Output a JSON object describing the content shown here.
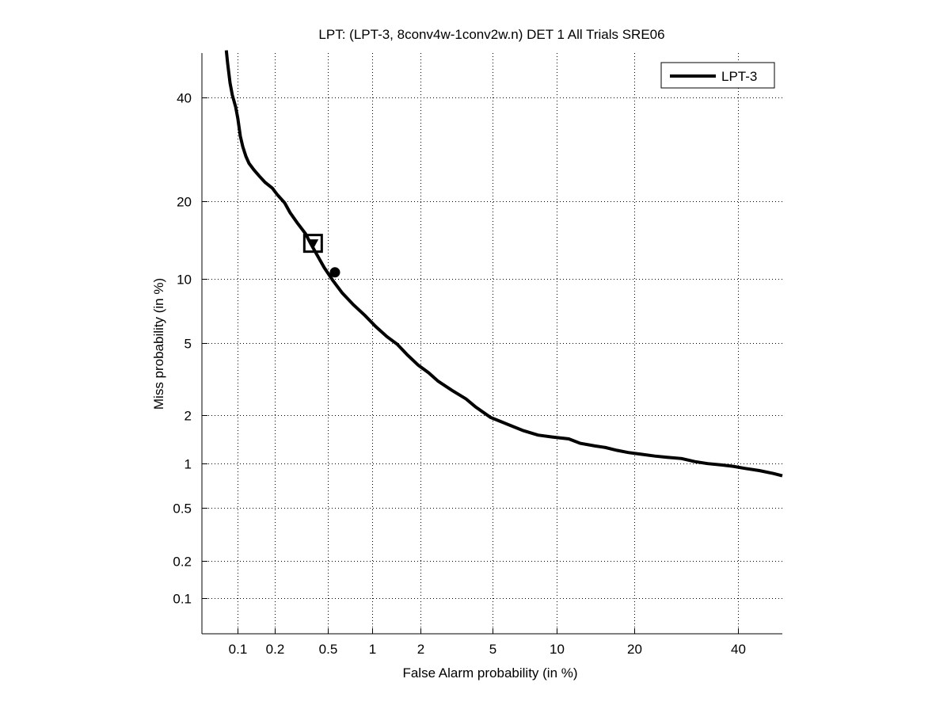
{
  "chart_data": {
    "type": "line",
    "scale": "normal-deviate (DET)",
    "title": "LPT: (LPT-3, 8conv4w-1conv2w.n) DET 1 All Trials SRE06",
    "xlabel": "False Alarm probability (in %)",
    "ylabel": "Miss probability (in %)",
    "xlim": [
      0.05,
      50
    ],
    "ylim": [
      0.05,
      50
    ],
    "grid": true,
    "x_ticks": [
      0.1,
      0.2,
      0.5,
      1,
      2,
      5,
      10,
      20,
      40
    ],
    "x_tick_labels": [
      "0.1",
      "0.2",
      "0.5",
      "1",
      "2",
      "5",
      "10",
      "20",
      "40"
    ],
    "y_ticks": [
      0.1,
      0.2,
      0.5,
      1,
      2,
      5,
      10,
      20,
      40
    ],
    "y_tick_labels": [
      "0.1",
      "0.2",
      "0.5",
      "1",
      "2",
      "5",
      "10",
      "20",
      "40"
    ],
    "legend": {
      "position": "top-right",
      "entries": [
        "LPT-3"
      ]
    },
    "series": [
      {
        "name": "LPT-3",
        "color": "#000000",
        "x": [
          0.081,
          0.083,
          0.087,
          0.091,
          0.097,
          0.101,
          0.106,
          0.111,
          0.118,
          0.125,
          0.137,
          0.151,
          0.168,
          0.192,
          0.21,
          0.239,
          0.263,
          0.298,
          0.343,
          0.37,
          0.412,
          0.47,
          0.54,
          0.63,
          0.75,
          0.9,
          1.06,
          1.25,
          1.45,
          1.68,
          1.95,
          2.25,
          2.55,
          3.05,
          3.65,
          4.1,
          4.9,
          5.9,
          7.1,
          8.3,
          9.6,
          11.3,
          12.6,
          14.4,
          15.8,
          17.4,
          19.1,
          21.2,
          23.5,
          25.7,
          28.4,
          31.0,
          33.6,
          36.5,
          39.0,
          41.7,
          44.8,
          48.0,
          50.0
        ],
        "y": [
          50.6,
          47.8,
          43.3,
          40.6,
          38.0,
          35.6,
          31.9,
          29.8,
          27.9,
          26.6,
          25.4,
          24.3,
          23.2,
          22.2,
          21.1,
          19.8,
          18.3,
          16.8,
          15.3,
          14.2,
          12.8,
          11.2,
          9.9,
          8.7,
          7.7,
          6.85,
          6.05,
          5.4,
          4.95,
          4.35,
          3.85,
          3.5,
          3.15,
          2.8,
          2.5,
          2.25,
          1.95,
          1.78,
          1.62,
          1.52,
          1.48,
          1.44,
          1.35,
          1.3,
          1.27,
          1.22,
          1.18,
          1.15,
          1.12,
          1.1,
          1.08,
          1.03,
          1.0,
          0.98,
          0.96,
          0.93,
          0.9,
          0.86,
          0.83
        ]
      }
    ],
    "markers": [
      {
        "shape": "square",
        "x": 0.39,
        "y": 14.0
      },
      {
        "shape": "triangle-down",
        "x": 0.39,
        "y": 14.0
      },
      {
        "shape": "circle",
        "x": 0.56,
        "y": 10.7
      }
    ]
  }
}
